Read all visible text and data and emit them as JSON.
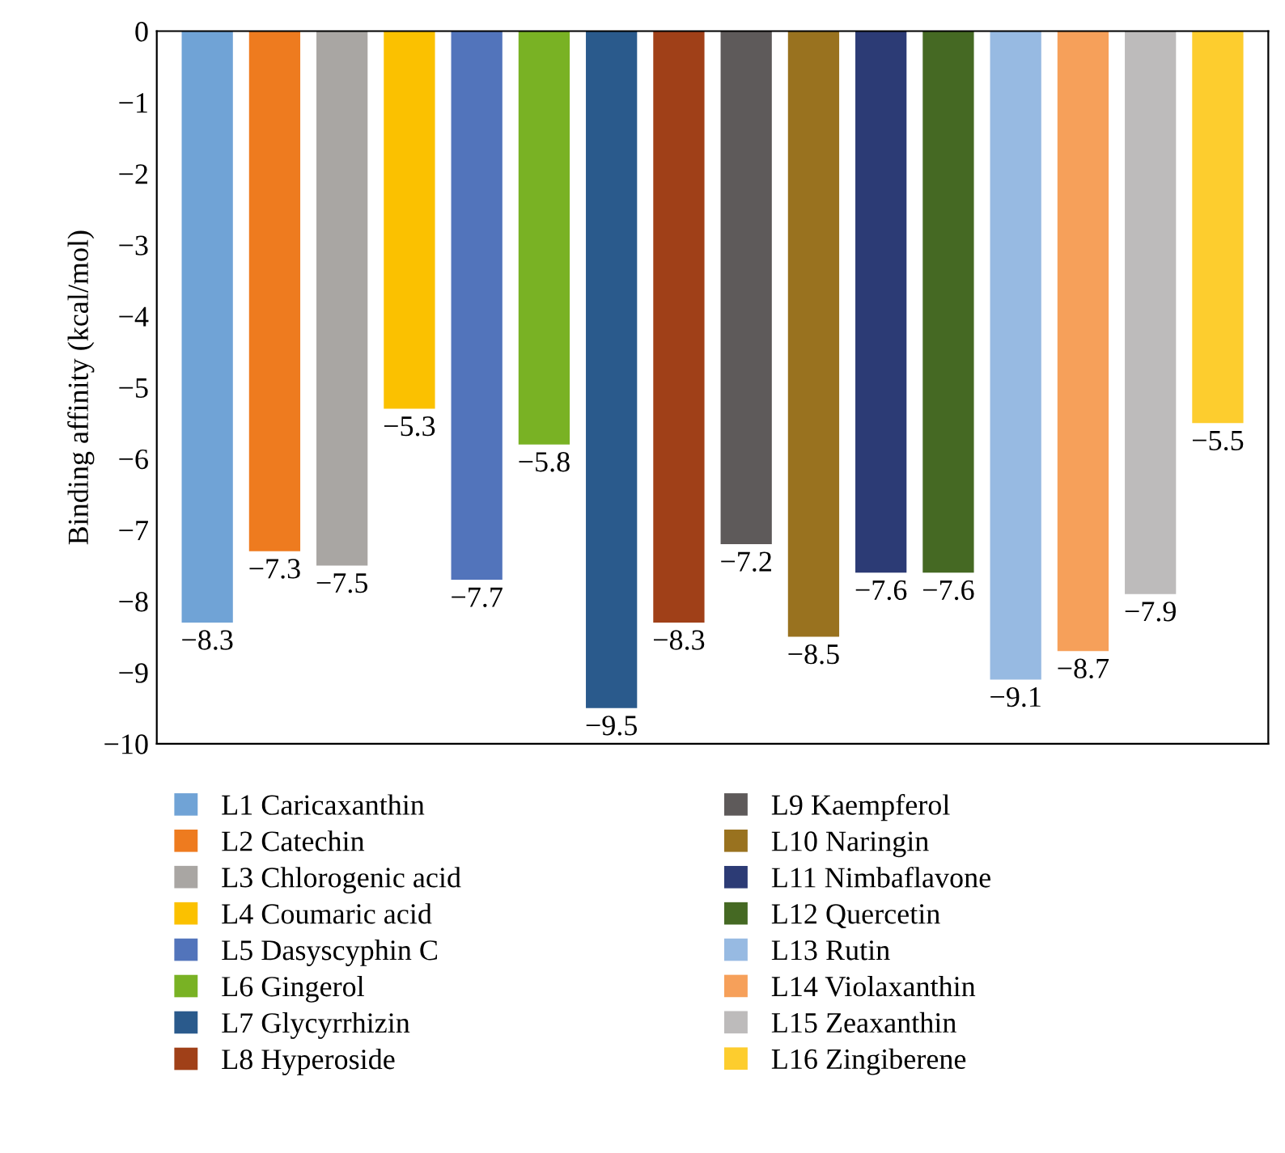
{
  "chart_data": {
    "type": "bar",
    "ylabel": "Binding affinity (kcal/mol)",
    "categories": [
      null,
      null,
      null,
      null,
      null,
      null,
      null,
      null,
      null,
      null,
      null,
      null,
      null,
      null,
      null,
      null
    ],
    "series": [
      {
        "name": "L1 Caricaxanthin",
        "color": "#70a3d6",
        "values": [
          -8.3,
          null,
          null,
          null,
          null,
          null,
          null,
          null,
          null,
          null,
          null,
          null,
          null,
          null,
          null,
          null
        ]
      },
      {
        "name": "L2 Catechin",
        "color": "#ee7b1f",
        "values": [
          null,
          -7.3,
          null,
          null,
          null,
          null,
          null,
          null,
          null,
          null,
          null,
          null,
          null,
          null,
          null,
          null
        ]
      },
      {
        "name": "L3 Chlorogenic acid",
        "color": "#a9a6a3",
        "values": [
          null,
          null,
          -7.5,
          null,
          null,
          null,
          null,
          null,
          null,
          null,
          null,
          null,
          null,
          null,
          null,
          null
        ]
      },
      {
        "name": "L4 Coumaric acid",
        "color": "#fbc100",
        "values": [
          null,
          null,
          null,
          -5.3,
          null,
          null,
          null,
          null,
          null,
          null,
          null,
          null,
          null,
          null,
          null,
          null
        ]
      },
      {
        "name": "L5 Dasyscyphin C",
        "color": "#5274bb",
        "values": [
          null,
          null,
          null,
          null,
          -7.7,
          null,
          null,
          null,
          null,
          null,
          null,
          null,
          null,
          null,
          null,
          null
        ]
      },
      {
        "name": "L6 Gingerol",
        "color": "#79b224",
        "values": [
          null,
          null,
          null,
          null,
          null,
          -5.8,
          null,
          null,
          null,
          null,
          null,
          null,
          null,
          null,
          null,
          null
        ]
      },
      {
        "name": "L7 Glycyrrhizin",
        "color": "#2a5a8c",
        "values": [
          null,
          null,
          null,
          null,
          null,
          null,
          -9.5,
          null,
          null,
          null,
          null,
          null,
          null,
          null,
          null,
          null
        ]
      },
      {
        "name": "L8 Hyperoside",
        "color": "#a04018",
        "values": [
          null,
          null,
          null,
          null,
          null,
          null,
          null,
          -8.3,
          null,
          null,
          null,
          null,
          null,
          null,
          null,
          null
        ]
      },
      {
        "name": "L9 Kaempferol",
        "color": "#5e5a5a",
        "values": [
          null,
          null,
          null,
          null,
          null,
          null,
          null,
          null,
          -7.2,
          null,
          null,
          null,
          null,
          null,
          null,
          null
        ]
      },
      {
        "name": "L10 Naringin",
        "color": "#99721f",
        "values": [
          null,
          null,
          null,
          null,
          null,
          null,
          null,
          null,
          null,
          -8.5,
          null,
          null,
          null,
          null,
          null,
          null
        ]
      },
      {
        "name": "L11 Nimbaflavone",
        "color": "#2c3b75",
        "values": [
          null,
          null,
          null,
          null,
          null,
          null,
          null,
          null,
          null,
          null,
          -7.6,
          null,
          null,
          null,
          null,
          null
        ]
      },
      {
        "name": "L12 Quercetin",
        "color": "#456923",
        "values": [
          null,
          null,
          null,
          null,
          null,
          null,
          null,
          null,
          null,
          null,
          null,
          -7.6,
          null,
          null,
          null,
          null
        ]
      },
      {
        "name": "L13 Rutin",
        "color": "#97bae2",
        "values": [
          null,
          null,
          null,
          null,
          null,
          null,
          null,
          null,
          null,
          null,
          null,
          null,
          -9.1,
          null,
          null,
          null
        ]
      },
      {
        "name": "L14 Violaxanthin",
        "color": "#f6a05a",
        "values": [
          null,
          null,
          null,
          null,
          null,
          null,
          null,
          null,
          null,
          null,
          null,
          null,
          null,
          -8.7,
          null,
          null
        ]
      },
      {
        "name": "L15 Zeaxanthin",
        "color": "#bdbbbb",
        "values": [
          null,
          null,
          null,
          null,
          null,
          null,
          null,
          null,
          null,
          null,
          null,
          null,
          null,
          null,
          -7.9,
          null
        ]
      },
      {
        "name": "L16 Zingiberene",
        "color": "#fdcd2e",
        "values": [
          null,
          null,
          null,
          null,
          null,
          null,
          null,
          null,
          null,
          null,
          null,
          null,
          null,
          null,
          null,
          -5.5
        ]
      }
    ],
    "ylim": [
      -10,
      0
    ],
    "yticks": [
      {
        "value": -10,
        "label": "−10"
      },
      {
        "value": -9,
        "label": "−9"
      },
      {
        "value": -8,
        "label": "−8"
      },
      {
        "value": -7,
        "label": "−7"
      },
      {
        "value": -6,
        "label": "−6"
      },
      {
        "value": -5,
        "label": "−5"
      },
      {
        "value": -4,
        "label": "−4"
      },
      {
        "value": -3,
        "label": "−3"
      },
      {
        "value": -2,
        "label": "−2"
      },
      {
        "value": -1,
        "label": "−1"
      },
      0
    ],
    "data_labels": true,
    "grid": false,
    "legend": "bottom"
  }
}
